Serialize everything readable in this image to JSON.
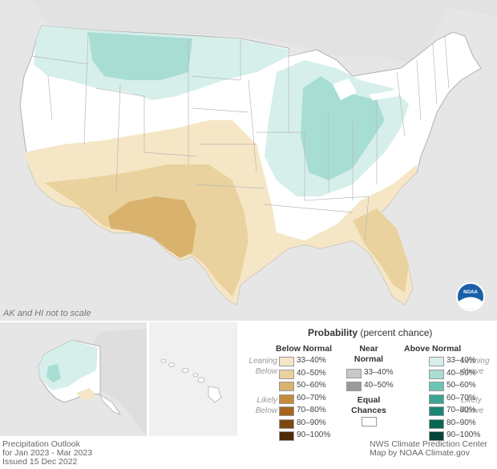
{
  "inset_note": "AK and HI not to scale",
  "footer": {
    "left_lines": [
      "Precipitation Outlook",
      "for Jan 2023 - Mar 2023",
      "Issued 15 Dec 2022"
    ],
    "right_lines": [
      "NWS Climate Prediction Center",
      "Map by NOAA Climate.gov"
    ]
  },
  "logo": {
    "text": "NOAA",
    "color": "#1a5fa8"
  },
  "legend": {
    "title": "Probability",
    "title_sub": "(percent chance)",
    "below_header": "Below Normal",
    "near_header": "Near Normal",
    "above_header": "Above Normal",
    "leaning_below": "Leaning Below",
    "likely_below": "Likely Below",
    "leaning_above": "Leaning Above",
    "likely_above": "Likely Above",
    "equal_chances": "Equal Chances",
    "below": [
      {
        "label": "33–40%",
        "color": "#f5e6c5"
      },
      {
        "label": "40–50%",
        "color": "#ead29e"
      },
      {
        "label": "50–60%",
        "color": "#d9b26e"
      },
      {
        "label": "60–70%",
        "color": "#c48b3a"
      },
      {
        "label": "70–80%",
        "color": "#a7651d"
      },
      {
        "label": "80–90%",
        "color": "#7c4712"
      },
      {
        "label": "90–100%",
        "color": "#4f2b07"
      }
    ],
    "near": [
      {
        "label": "33–40%",
        "color": "#c8c8c8"
      },
      {
        "label": "40–50%",
        "color": "#9a9a9a"
      }
    ],
    "above": [
      {
        "label": "33–40%",
        "color": "#d6efeb"
      },
      {
        "label": "40–50%",
        "color": "#a8ddd3"
      },
      {
        "label": "50–60%",
        "color": "#6cc4b4"
      },
      {
        "label": "60–70%",
        "color": "#3aa593"
      },
      {
        "label": "70–80%",
        "color": "#1c8574"
      },
      {
        "label": "80–90%",
        "color": "#0b6555"
      },
      {
        "label": "90–100%",
        "color": "#04443a"
      }
    ]
  }
}
